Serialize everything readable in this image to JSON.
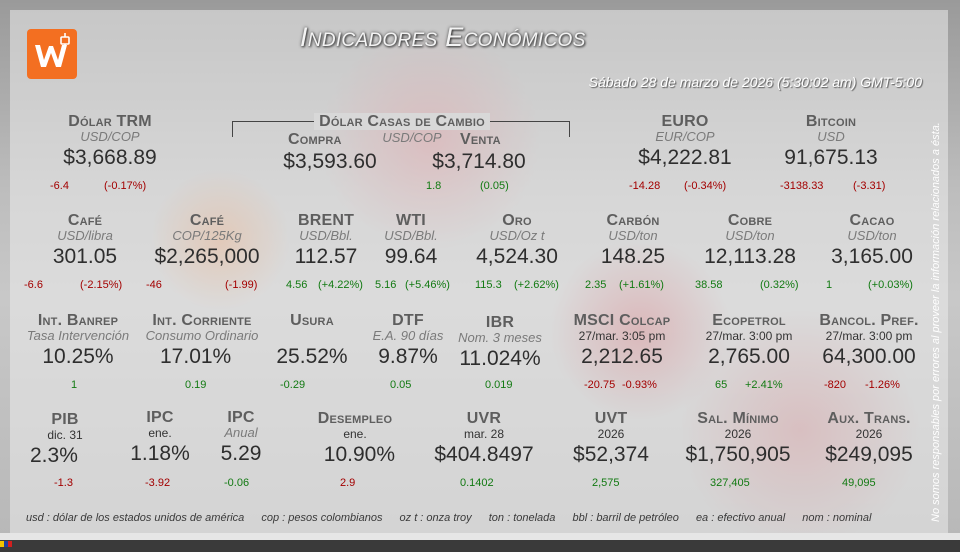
{
  "header": {
    "title": "Indicadores Económicos",
    "date": "Sábado 28 de marzo de 2026 (5:30:02 am) GMT-5:00",
    "side_note": "No somos responsables por errores al proveer la información relacionados a ésta."
  },
  "colors": {
    "logo": "#f36f21",
    "negative": "#a30000",
    "positive": "#127a12"
  },
  "row1": {
    "dolar_trm": {
      "name": "Dólar TRM",
      "unit": "USD/COP",
      "value": "$3,668.89",
      "chg": "-6.4",
      "pct": "(-0.17%)"
    },
    "casas": {
      "title": "Dólar Casas de Cambio",
      "unit": "USD/COP",
      "compra_label": "Compra",
      "compra_value": "$3,593.60",
      "venta_label": "Venta",
      "venta_value": "$3,714.80",
      "chg": "1.8",
      "pct": "(0.05)"
    },
    "euro": {
      "name": "EURO",
      "unit": "EUR/COP",
      "value": "$4,222.81",
      "chg": "-14.28",
      "pct": "(-0.34%)"
    },
    "bitcoin": {
      "name": "Bitcoin",
      "unit": "USD",
      "value": "91,675.13",
      "chg": "-3138.33",
      "pct": "(-3.31)"
    }
  },
  "row2": {
    "cafe_usd": {
      "name": "Café",
      "unit": "USD/libra",
      "value": "301.05",
      "chg": "-6.6",
      "pct": "(-2.15%)"
    },
    "cafe_cop": {
      "name": "Café",
      "unit": "COP/125Kg",
      "value": "$2,265,000",
      "chg": "-46",
      "pct": "(-1.99)"
    },
    "brent": {
      "name": "BRENT",
      "unit": "USD/Bbl.",
      "value": "112.57",
      "chg": "4.56",
      "pct": "(+4.22%)"
    },
    "wti": {
      "name": "WTI",
      "unit": "USD/Bbl.",
      "value": "99.64",
      "chg": "5.16",
      "pct": "(+5.46%)"
    },
    "oro": {
      "name": "Oro",
      "unit": "USD/Oz t",
      "value": "4,524.30",
      "chg": "115.3",
      "pct": "(+2.62%)"
    },
    "carbon": {
      "name": "Carbón",
      "unit": "USD/ton",
      "value": "148.25",
      "chg": "2.35",
      "pct": "(+1.61%)"
    },
    "cobre": {
      "name": "Cobre",
      "unit": "USD/ton",
      "value": "12,113.28",
      "chg": "38.58",
      "pct": "(0.32%)"
    },
    "cacao": {
      "name": "Cacao",
      "unit": "USD/ton",
      "value": "3,165.00",
      "chg": "1",
      "pct": "(+0.03%)"
    }
  },
  "row3": {
    "banrep": {
      "name": "Int. Banrep",
      "unit": "Tasa Intervención",
      "value": "10.25%",
      "chg": "1"
    },
    "corriente": {
      "name": "Int. Corriente",
      "unit": "Consumo Ordinario",
      "value": "17.01%",
      "chg": "0.19"
    },
    "usura": {
      "name": "Usura",
      "value": "25.52%",
      "chg": "-0.29"
    },
    "dtf": {
      "name": "DTF",
      "unit": "E.A. 90 días",
      "value": "9.87%",
      "chg": "0.05"
    },
    "ibr": {
      "name": "IBR",
      "unit": "Nom. 3 meses",
      "value": "11.024%",
      "chg": "0.019"
    },
    "msci": {
      "name": "MSCI Colcap",
      "date": "27/mar. 3:05 pm",
      "value": "2,212.65",
      "chg": "-20.75",
      "pct": "-0.93%"
    },
    "ecopetrol": {
      "name": "Ecopetrol",
      "date": "27/mar. 3:00 pm",
      "value": "2,765.00",
      "chg": "65",
      "pct": "+2.41%"
    },
    "bancol": {
      "name": "Bancol. Pref.",
      "date": "27/mar. 3:00 pm",
      "value": "64,300.00",
      "chg": "-820",
      "pct": "-1.26%"
    }
  },
  "row4": {
    "pib": {
      "name": "PIB",
      "date": "dic. 31",
      "value": "2.3%",
      "chg": "-1.3"
    },
    "ipc1": {
      "name": "IPC",
      "date": "ene.",
      "value": "1.18%",
      "chg": "-3.92"
    },
    "ipc2": {
      "name": "IPC",
      "unit": "Anual",
      "value": "5.29",
      "chg": "-0.06"
    },
    "desempleo": {
      "name": "Desempleo",
      "date": "ene.",
      "value": "10.90%",
      "chg": "2.9"
    },
    "uvr": {
      "name": "UVR",
      "date": "mar. 28",
      "value": "$404.8497",
      "chg": "0.1402"
    },
    "uvt": {
      "name": "UVT",
      "date": "2026",
      "value": "$52,374",
      "chg": "2,575"
    },
    "salmin": {
      "name": "Sal. Mínimo",
      "date": "2026",
      "value": "$1,750,905",
      "chg": "327,405"
    },
    "auxtrans": {
      "name": "Aux. Trans.",
      "date": "2026",
      "value": "$249,095",
      "chg": "49,095"
    }
  },
  "footer": {
    "usd": "usd : dólar de los estados unidos de américa",
    "cop": "cop : pesos colombianos",
    "oz": "oz t : onza troy",
    "ton": "ton : tonelada",
    "bbl": "bbl : barril de petróleo",
    "ea": "ea : efectivo anual",
    "nom": "nom : nominal"
  }
}
